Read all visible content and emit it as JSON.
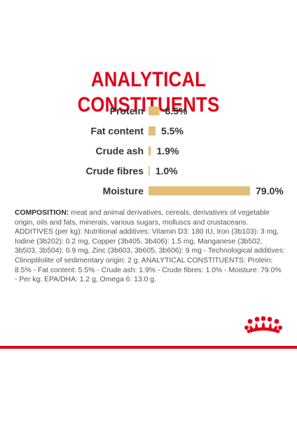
{
  "title": "ANALYTICAL CONSTITUENTS",
  "chart_data": {
    "type": "bar",
    "orientation": "horizontal",
    "categories": [
      "Protein",
      "Fat content",
      "Crude ash",
      "Crude fibres",
      "Moisture"
    ],
    "values": [
      8.5,
      5.5,
      1.9,
      1.0,
      79.0
    ],
    "value_labels": [
      "8.5%",
      "5.5%",
      "1.9%",
      "1.0%",
      "79.0%"
    ],
    "unit": "%",
    "xlim": [
      0,
      79.0
    ],
    "bar_color": "#e3be78",
    "grid": false,
    "legend": "none"
  },
  "composition": {
    "heading": "COMPOSITION:",
    "text": "meat and animal derivatives, cereals, derivatives of vegetable origin, oils and fats, minerals, various sugars, molluscs and crustaceans. ADDITIVES (per kg): Nutritional additives: Vitamin D3: 180 IU, Iron (3b103): 3 mg, Iodine (3b202): 0.2 mg, Copper (3b405, 3b406): 1.5 mg, Manganese (3b502, 3b503, 3b504): 0.9 mg, Zinc (3b603, 3b605, 3b606): 9 mg - Technological additives: Clinoptilolite of sedimentary origin: 2 g. ANALYTICAL CONSTITUENTS: Protein: 8.5% - Fat content: 5.5% - Crude ash: 1.9% - Crude fibres: 1.0% - Moisture: 79.0% - Per kg: EPA/DHA: 1.2 g, Omega 6: 13.0 g."
  },
  "colors": {
    "brand_red": "#e2001a",
    "bar": "#e3be78",
    "text": "#333333"
  },
  "icons": {
    "logo": "royal-crown-logo"
  }
}
